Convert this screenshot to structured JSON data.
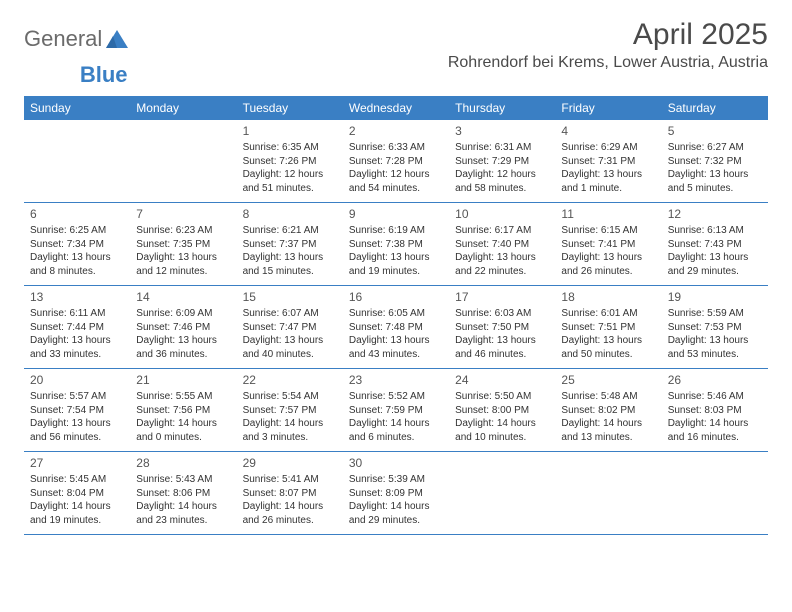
{
  "logo": {
    "text_general": "General",
    "text_blue": "Blue"
  },
  "title": "April 2025",
  "location": "Rohrendorf bei Krems, Lower Austria, Austria",
  "colors": {
    "header_bg": "#3a7fc4",
    "header_text": "#ffffff",
    "border": "#3a7fc4",
    "text": "#333333",
    "title_text": "#4a4a4a",
    "background": "#ffffff"
  },
  "day_names": [
    "Sunday",
    "Monday",
    "Tuesday",
    "Wednesday",
    "Thursday",
    "Friday",
    "Saturday"
  ],
  "weeks": [
    [
      null,
      null,
      {
        "n": "1",
        "sr": "Sunrise: 6:35 AM",
        "ss": "Sunset: 7:26 PM",
        "dl": "Daylight: 12 hours and 51 minutes."
      },
      {
        "n": "2",
        "sr": "Sunrise: 6:33 AM",
        "ss": "Sunset: 7:28 PM",
        "dl": "Daylight: 12 hours and 54 minutes."
      },
      {
        "n": "3",
        "sr": "Sunrise: 6:31 AM",
        "ss": "Sunset: 7:29 PM",
        "dl": "Daylight: 12 hours and 58 minutes."
      },
      {
        "n": "4",
        "sr": "Sunrise: 6:29 AM",
        "ss": "Sunset: 7:31 PM",
        "dl": "Daylight: 13 hours and 1 minute."
      },
      {
        "n": "5",
        "sr": "Sunrise: 6:27 AM",
        "ss": "Sunset: 7:32 PM",
        "dl": "Daylight: 13 hours and 5 minutes."
      }
    ],
    [
      {
        "n": "6",
        "sr": "Sunrise: 6:25 AM",
        "ss": "Sunset: 7:34 PM",
        "dl": "Daylight: 13 hours and 8 minutes."
      },
      {
        "n": "7",
        "sr": "Sunrise: 6:23 AM",
        "ss": "Sunset: 7:35 PM",
        "dl": "Daylight: 13 hours and 12 minutes."
      },
      {
        "n": "8",
        "sr": "Sunrise: 6:21 AM",
        "ss": "Sunset: 7:37 PM",
        "dl": "Daylight: 13 hours and 15 minutes."
      },
      {
        "n": "9",
        "sr": "Sunrise: 6:19 AM",
        "ss": "Sunset: 7:38 PM",
        "dl": "Daylight: 13 hours and 19 minutes."
      },
      {
        "n": "10",
        "sr": "Sunrise: 6:17 AM",
        "ss": "Sunset: 7:40 PM",
        "dl": "Daylight: 13 hours and 22 minutes."
      },
      {
        "n": "11",
        "sr": "Sunrise: 6:15 AM",
        "ss": "Sunset: 7:41 PM",
        "dl": "Daylight: 13 hours and 26 minutes."
      },
      {
        "n": "12",
        "sr": "Sunrise: 6:13 AM",
        "ss": "Sunset: 7:43 PM",
        "dl": "Daylight: 13 hours and 29 minutes."
      }
    ],
    [
      {
        "n": "13",
        "sr": "Sunrise: 6:11 AM",
        "ss": "Sunset: 7:44 PM",
        "dl": "Daylight: 13 hours and 33 minutes."
      },
      {
        "n": "14",
        "sr": "Sunrise: 6:09 AM",
        "ss": "Sunset: 7:46 PM",
        "dl": "Daylight: 13 hours and 36 minutes."
      },
      {
        "n": "15",
        "sr": "Sunrise: 6:07 AM",
        "ss": "Sunset: 7:47 PM",
        "dl": "Daylight: 13 hours and 40 minutes."
      },
      {
        "n": "16",
        "sr": "Sunrise: 6:05 AM",
        "ss": "Sunset: 7:48 PM",
        "dl": "Daylight: 13 hours and 43 minutes."
      },
      {
        "n": "17",
        "sr": "Sunrise: 6:03 AM",
        "ss": "Sunset: 7:50 PM",
        "dl": "Daylight: 13 hours and 46 minutes."
      },
      {
        "n": "18",
        "sr": "Sunrise: 6:01 AM",
        "ss": "Sunset: 7:51 PM",
        "dl": "Daylight: 13 hours and 50 minutes."
      },
      {
        "n": "19",
        "sr": "Sunrise: 5:59 AM",
        "ss": "Sunset: 7:53 PM",
        "dl": "Daylight: 13 hours and 53 minutes."
      }
    ],
    [
      {
        "n": "20",
        "sr": "Sunrise: 5:57 AM",
        "ss": "Sunset: 7:54 PM",
        "dl": "Daylight: 13 hours and 56 minutes."
      },
      {
        "n": "21",
        "sr": "Sunrise: 5:55 AM",
        "ss": "Sunset: 7:56 PM",
        "dl": "Daylight: 14 hours and 0 minutes."
      },
      {
        "n": "22",
        "sr": "Sunrise: 5:54 AM",
        "ss": "Sunset: 7:57 PM",
        "dl": "Daylight: 14 hours and 3 minutes."
      },
      {
        "n": "23",
        "sr": "Sunrise: 5:52 AM",
        "ss": "Sunset: 7:59 PM",
        "dl": "Daylight: 14 hours and 6 minutes."
      },
      {
        "n": "24",
        "sr": "Sunrise: 5:50 AM",
        "ss": "Sunset: 8:00 PM",
        "dl": "Daylight: 14 hours and 10 minutes."
      },
      {
        "n": "25",
        "sr": "Sunrise: 5:48 AM",
        "ss": "Sunset: 8:02 PM",
        "dl": "Daylight: 14 hours and 13 minutes."
      },
      {
        "n": "26",
        "sr": "Sunrise: 5:46 AM",
        "ss": "Sunset: 8:03 PM",
        "dl": "Daylight: 14 hours and 16 minutes."
      }
    ],
    [
      {
        "n": "27",
        "sr": "Sunrise: 5:45 AM",
        "ss": "Sunset: 8:04 PM",
        "dl": "Daylight: 14 hours and 19 minutes."
      },
      {
        "n": "28",
        "sr": "Sunrise: 5:43 AM",
        "ss": "Sunset: 8:06 PM",
        "dl": "Daylight: 14 hours and 23 minutes."
      },
      {
        "n": "29",
        "sr": "Sunrise: 5:41 AM",
        "ss": "Sunset: 8:07 PM",
        "dl": "Daylight: 14 hours and 26 minutes."
      },
      {
        "n": "30",
        "sr": "Sunrise: 5:39 AM",
        "ss": "Sunset: 8:09 PM",
        "dl": "Daylight: 14 hours and 29 minutes."
      },
      null,
      null,
      null
    ]
  ]
}
